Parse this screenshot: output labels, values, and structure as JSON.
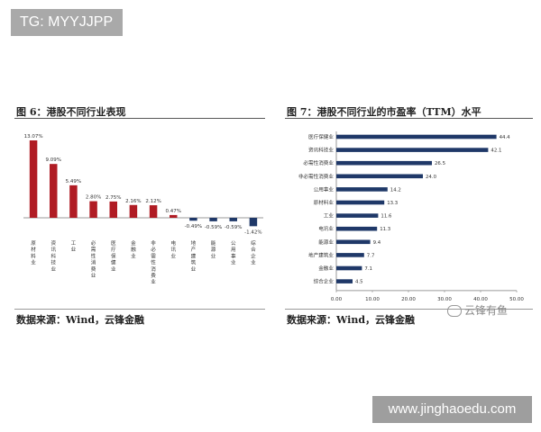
{
  "tg_label": "TG: MYYJJPP",
  "site_label": "www.jinghaoedu.com",
  "watermark_text": "云锋有鱼",
  "colors": {
    "left_bar": "#b01c24",
    "right_bar": "#1f3868"
  },
  "chart_data": [
    {
      "type": "bar",
      "title": "图 6：港股不同行业表现",
      "source": "数据来源：Wind，云锋金融",
      "categories": [
        "原材料业",
        "资讯科技业",
        "工业",
        "必需性消费业",
        "医疗保健业",
        "金融业",
        "非必需性消费业",
        "电讯业",
        "地产建筑业",
        "能源业",
        "公用事业",
        "综合企业"
      ],
      "values": [
        13.07,
        9.09,
        5.49,
        2.8,
        2.75,
        2.16,
        2.12,
        0.47,
        -0.49,
        -0.59,
        -0.59,
        -1.42
      ],
      "value_labels": [
        "13.07%",
        "9.09%",
        "5.49%",
        "2.80%",
        "2.75%",
        "2.16%",
        "2.12%",
        "0.47%",
        "-0.49%",
        "-0.59%",
        "-0.59%",
        "-1.42%"
      ],
      "grid": false
    },
    {
      "type": "bar",
      "orientation": "horizontal",
      "title": "图 7：港股不同行业的市盈率（TTM）水平",
      "source": "数据来源：Wind，云锋金融",
      "categories": [
        "医疗保健业",
        "资讯科技业",
        "必需性消费业",
        "非必需性消费业",
        "公用事业",
        "原材料业",
        "工业",
        "电讯业",
        "能源业",
        "地产建筑业",
        "金融业",
        "综合企业"
      ],
      "values": [
        44.4,
        42.1,
        26.5,
        24.0,
        14.2,
        13.3,
        11.6,
        11.3,
        9.4,
        7.7,
        7.1,
        4.5
      ],
      "value_labels": [
        "44.4",
        "42.1",
        "26.5",
        "24.0",
        "14.2",
        "13.3",
        "11.6",
        "11.3",
        "9.4",
        "7.7",
        "7.1",
        "4.5"
      ],
      "x_tick_labels": [
        "0.00",
        "10.00",
        "20.00",
        "30.00",
        "40.00",
        "50.00"
      ],
      "xlim": [
        0,
        50
      ],
      "grid": false
    }
  ]
}
